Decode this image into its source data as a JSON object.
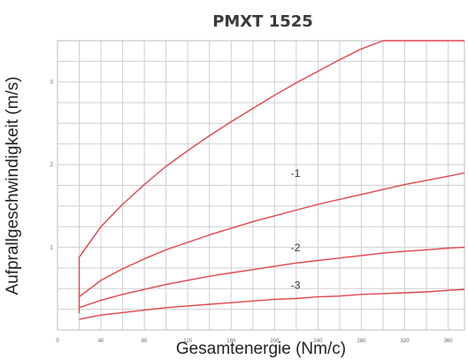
{
  "chart_data": {
    "type": "line",
    "title": "PMXT 1525",
    "xlabel": "Gesamtenergie (Nm/c)",
    "ylabel": "Aufprallgeschwindigkeit (m/s)",
    "xlim": [
      0,
      375
    ],
    "ylim": [
      0,
      3.5
    ],
    "x_ticks": [
      0,
      40,
      80,
      120,
      160,
      200,
      240,
      280,
      320,
      360
    ],
    "x_tick_labels": [
      "0",
      "40",
      "80",
      "120",
      "160",
      "200",
      "240",
      "280",
      "320",
      "360"
    ],
    "y_ticks": [
      1,
      2,
      3
    ],
    "y_tick_labels": [
      "1",
      "2",
      "3"
    ],
    "grid": true,
    "colors": {
      "curves": "#e0454b",
      "grid": "#cfcfcf",
      "frame": "#bdbdbd"
    },
    "series": [
      {
        "name": "-1",
        "x": [
          20,
          20,
          40,
          60,
          80,
          100,
          120,
          140,
          160,
          180,
          200,
          220,
          240,
          260,
          280,
          300,
          375
        ],
        "y": [
          0.2,
          0.88,
          1.25,
          1.52,
          1.76,
          1.98,
          2.17,
          2.35,
          2.52,
          2.68,
          2.84,
          2.99,
          3.13,
          3.27,
          3.4,
          3.5,
          3.5
        ]
      },
      {
        "name": "-2",
        "x": [
          20,
          40,
          60,
          80,
          100,
          120,
          140,
          160,
          180,
          200,
          220,
          240,
          260,
          280,
          300,
          320,
          340,
          360,
          375
        ],
        "y": [
          0.4,
          0.6,
          0.74,
          0.86,
          0.97,
          1.06,
          1.15,
          1.23,
          1.31,
          1.38,
          1.45,
          1.52,
          1.58,
          1.64,
          1.7,
          1.76,
          1.81,
          1.86,
          1.9
        ]
      },
      {
        "name": "-3",
        "x": [
          20,
          40,
          60,
          80,
          100,
          120,
          140,
          160,
          180,
          200,
          220,
          240,
          260,
          280,
          300,
          320,
          340,
          360,
          375
        ],
        "y": [
          0.27,
          0.36,
          0.43,
          0.49,
          0.55,
          0.6,
          0.65,
          0.69,
          0.73,
          0.77,
          0.81,
          0.84,
          0.87,
          0.9,
          0.93,
          0.95,
          0.97,
          0.99,
          1.0
        ]
      },
      {
        "name": "",
        "x": [
          20,
          40,
          60,
          80,
          100,
          120,
          140,
          160,
          180,
          200,
          220,
          240,
          260,
          280,
          300,
          320,
          340,
          360,
          375
        ],
        "y": [
          0.13,
          0.18,
          0.21,
          0.24,
          0.27,
          0.29,
          0.31,
          0.33,
          0.35,
          0.37,
          0.38,
          0.4,
          0.41,
          0.43,
          0.44,
          0.45,
          0.46,
          0.48,
          0.49
        ]
      }
    ],
    "curve_labels": [
      {
        "text": "-1",
        "x": 215,
        "y": 1.85
      },
      {
        "text": "-2",
        "x": 215,
        "y": 0.95
      },
      {
        "text": "-3",
        "x": 215,
        "y": 0.5
      }
    ]
  }
}
